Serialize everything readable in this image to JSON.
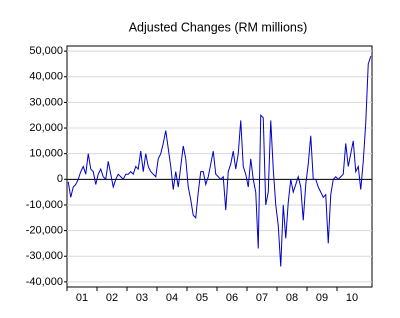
{
  "chart_data": {
    "type": "line",
    "title": "Adjusted Changes (RM millions)",
    "categories": [
      null,
      null,
      null,
      null,
      null,
      "01",
      null,
      null,
      null,
      null,
      null,
      null,
      null,
      null,
      null,
      null,
      null,
      "02",
      null,
      null,
      null,
      null,
      null,
      null,
      null,
      null,
      null,
      null,
      null,
      "03",
      null,
      null,
      null,
      null,
      null,
      null,
      null,
      null,
      null,
      null,
      null,
      "04",
      null,
      null,
      null,
      null,
      null,
      null,
      null,
      null,
      null,
      null,
      null,
      "05",
      null,
      null,
      null,
      null,
      null,
      null,
      null,
      null,
      null,
      null,
      null,
      "06",
      null,
      null,
      null,
      null,
      null,
      null,
      null,
      null,
      null,
      null,
      null,
      "07",
      null,
      null,
      null,
      null,
      null,
      null,
      null,
      null,
      null,
      null,
      null,
      "08",
      null,
      null,
      null,
      null,
      null,
      null,
      null,
      null,
      null,
      null,
      null,
      "09",
      null,
      null,
      null,
      null,
      null,
      null,
      null,
      null,
      null,
      null,
      null,
      "10",
      null,
      null,
      null,
      null,
      null,
      null,
      null,
      null
    ],
    "series": [
      {
        "color": "#0000cc",
        "values": [
          -1000,
          -7000,
          -3000,
          -2000,
          0,
          3000,
          5000,
          2000,
          10000,
          4000,
          3000,
          -2000,
          2000,
          4000,
          1000,
          0,
          7000,
          2000,
          -3000,
          0,
          2000,
          1000,
          0,
          2000,
          2000,
          3000,
          2000,
          5000,
          4000,
          11000,
          3000,
          10000,
          5000,
          3000,
          2000,
          1000,
          8000,
          10000,
          14000,
          19000,
          12000,
          5000,
          -4000,
          3000,
          -3000,
          5000,
          13000,
          8000,
          -3000,
          -8000,
          -14000,
          -15000,
          -5000,
          3000,
          3000,
          -2000,
          1000,
          6000,
          11000,
          2000,
          1000,
          0,
          1000,
          -12000,
          3000,
          6000,
          11000,
          4000,
          10000,
          23000,
          5000,
          2000,
          -3000,
          8000,
          0,
          -5000,
          -27000,
          25000,
          24000,
          -10000,
          -5000,
          23000,
          4000,
          -10000,
          -18000,
          -34000,
          -10000,
          -23000,
          -9000,
          0,
          -5000,
          -2000,
          1000,
          -3000,
          -16000,
          -2000,
          6000,
          17000,
          0,
          0,
          -3000,
          -5000,
          -7000,
          -6000,
          -25000,
          -6000,
          0,
          1000,
          0,
          1000,
          2000,
          14000,
          5000,
          10000,
          15000,
          3000,
          5000,
          -4000,
          7000,
          22000,
          45000,
          48000
        ]
      }
    ],
    "ylim": [
      -42000,
      52000
    ],
    "yticks": [
      {
        "value": -40000,
        "label": "-40,000"
      },
      {
        "value": -30000,
        "label": "-30,000"
      },
      {
        "value": -20000,
        "label": "-20,000"
      },
      {
        "value": -10000,
        "label": "-10,000"
      },
      0,
      {
        "value": 10000,
        "label": "10,000"
      },
      {
        "value": 20000,
        "label": "20,000"
      },
      {
        "value": 30000,
        "label": "30,000"
      },
      {
        "value": 40000,
        "label": "40,000"
      },
      {
        "value": 50000,
        "label": "50,000"
      }
    ],
    "grid": true
  }
}
